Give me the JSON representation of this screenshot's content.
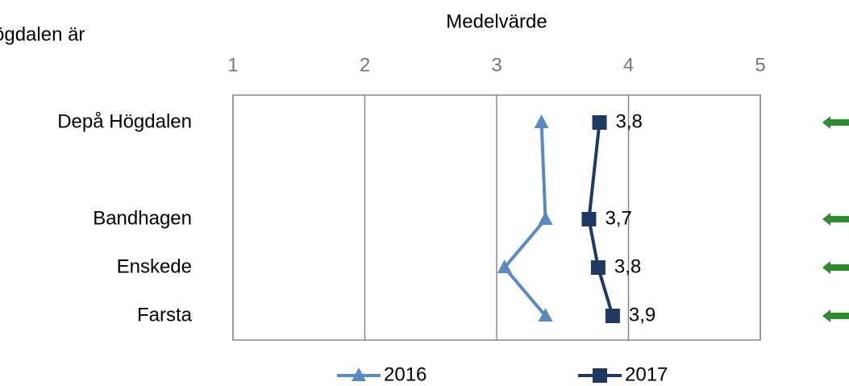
{
  "chart_data": {
    "type": "line",
    "orientation": "horizontal",
    "title": "ögdalen är",
    "x_label": "Medelvärde",
    "categories": [
      "Depå Högdalen",
      null,
      "Bandhagen",
      "Enskede",
      "Farsta"
    ],
    "xlim": [
      1,
      5
    ],
    "xticks": [
      1,
      2,
      3,
      4,
      5
    ],
    "grid": true,
    "connect_nulls": true,
    "legend": "bottom",
    "series": [
      {
        "name": "2016",
        "color": "#5a8ac0",
        "marker": "triangle",
        "values": [
          3.34,
          null,
          3.37,
          3.06,
          3.37
        ]
      },
      {
        "name": "2017",
        "color": "#1f3864",
        "marker": "square",
        "values": [
          3.78,
          null,
          3.7,
          3.77,
          3.88
        ],
        "value_labels": [
          "3,8",
          null,
          "3,7",
          "3,8",
          "3,9"
        ]
      }
    ]
  }
}
